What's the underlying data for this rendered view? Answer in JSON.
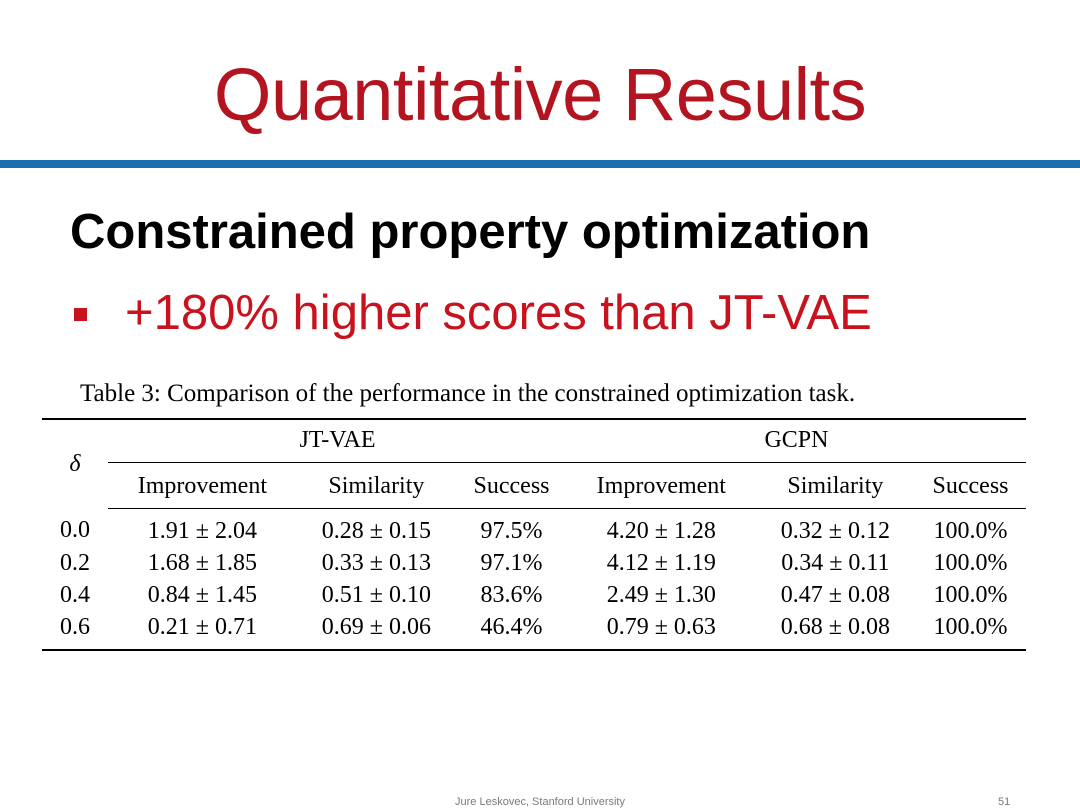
{
  "title": "Quantitative Results",
  "heading": "Constrained property optimization",
  "bullet": "+180% higher scores than JT-VAE",
  "caption": "Table 3: Comparison of the performance in the constrained optimization task.",
  "table": {
    "delta_label": "δ",
    "groups": [
      "JT-VAE",
      "GCPN"
    ],
    "columns": [
      "Improvement",
      "Similarity",
      "Success",
      "Improvement",
      "Similarity",
      "Success"
    ],
    "rows": [
      {
        "delta": "0.0",
        "cells": [
          "1.91 ± 2.04",
          "0.28 ± 0.15",
          "97.5%",
          "4.20 ± 1.28",
          "0.32 ± 0.12",
          "100.0%"
        ],
        "bold": [
          false,
          false,
          false,
          true,
          true,
          true
        ]
      },
      {
        "delta": "0.2",
        "cells": [
          "1.68 ± 1.85",
          "0.33 ± 0.13",
          "97.1%",
          "4.12 ± 1.19",
          "0.34 ± 0.11",
          "100.0%"
        ],
        "bold": [
          false,
          false,
          false,
          true,
          true,
          true
        ]
      },
      {
        "delta": "0.4",
        "cells": [
          "0.84 ± 1.45",
          "0.51 ± 0.10",
          "83.6%",
          "2.49 ± 1.30",
          "0.47 ± 0.08",
          "100.0%"
        ],
        "bold": [
          false,
          true,
          false,
          true,
          false,
          true
        ]
      },
      {
        "delta": "0.6",
        "cells": [
          "0.21 ± 0.71",
          "0.69 ± 0.06",
          "46.4%",
          "0.79 ± 0.63",
          "0.68 ± 0.08",
          "100.0%"
        ],
        "bold": [
          false,
          false,
          false,
          true,
          true,
          true
        ]
      }
    ]
  },
  "footer": "Jure Leskovec, Stanford University",
  "page_number": "51",
  "colors": {
    "title": "#b3141f",
    "rule": "#1b6fae",
    "bullet": "#c8121d"
  }
}
